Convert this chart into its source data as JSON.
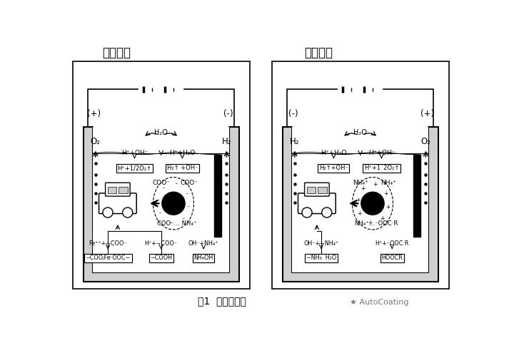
{
  "title_left": "阳极电泳",
  "title_right": "阴极电泳",
  "caption": "图1  电泳原理图",
  "watermark": "★ AutoCoating",
  "bg_color": "#ffffff",
  "left_panel": {
    "plus_label": "(+)",
    "minus_label": "(-)",
    "gas_left": "O₂",
    "gas_right": "H₂",
    "water_label": "H₂O",
    "reaction_left_top": "H⁺+OH⁻",
    "reaction_right_top": "H⁺+H₂O",
    "box_left": "H⁺+1/2O₂↑",
    "box_right": "H₂↑ +OH⁻",
    "particle_label_tl": "COO⁻",
    "particle_label_tr": "COO⁻",
    "particle_label_bot": "COO⁻… NH₄⁺",
    "reaction_car1": "Fe⁺⁺+∼COO⁻",
    "box_car1": "∼COOⱼFe·OOC∼",
    "reaction_car2": "H⁺+∼COO⁻",
    "box_car2": "∼COOH",
    "reaction_car3": "OH⁻+NH₄⁺",
    "box_car3": "NH₄OH"
  },
  "right_panel": {
    "minus_label": "(-)",
    "plus_label": "(+)",
    "gas_left": "H₂",
    "gas_right": "O₂",
    "water_label": "H₂O",
    "reaction_left_top": "H⁺+H₂O",
    "reaction_right_top": "H⁺+OH⁻",
    "box_left": "H₂↑+OH⁻",
    "box_right": "H⁺+1´2O₂↑",
    "particle_label_tl": "NH₄⁺",
    "particle_label_tr": "NH₄⁺",
    "particle_label_bot": "NH₄⁺…⁻OOC·R",
    "reaction_car1": "OH⁻+∼NH₄⁺",
    "box_car1": "∼NH₃  H₂O",
    "reaction_car2": "H⁺+⁻OOC·R",
    "box_car2": "HOOCR"
  }
}
